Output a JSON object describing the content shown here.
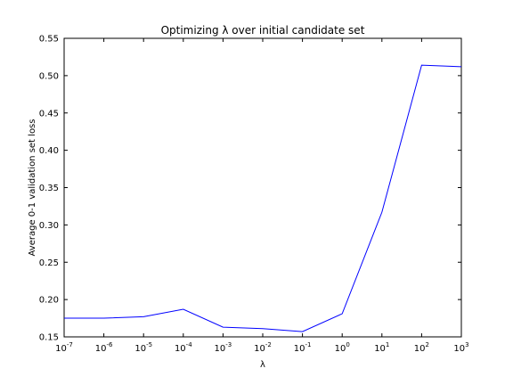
{
  "chart_data": {
    "type": "line",
    "title": "Optimizing λ over initial candidate set",
    "xlabel": "λ",
    "ylabel": "Average 0-1 validation set loss",
    "xscale": "log",
    "xlim": [
      1e-07,
      1000
    ],
    "ylim": [
      0.15,
      0.55
    ],
    "grid": false,
    "legend": "none",
    "x_ticks": [
      {
        "value": 1e-07,
        "base": "10",
        "exp": "-7"
      },
      {
        "value": 1e-06,
        "base": "10",
        "exp": "-6"
      },
      {
        "value": 1e-05,
        "base": "10",
        "exp": "-5"
      },
      {
        "value": 0.0001,
        "base": "10",
        "exp": "-4"
      },
      {
        "value": 0.001,
        "base": "10",
        "exp": "-3"
      },
      {
        "value": 0.01,
        "base": "10",
        "exp": "-2"
      },
      {
        "value": 0.1,
        "base": "10",
        "exp": "-1"
      },
      {
        "value": 1,
        "base": "10",
        "exp": "0"
      },
      {
        "value": 10,
        "base": "10",
        "exp": "1"
      },
      {
        "value": 100,
        "base": "10",
        "exp": "2"
      },
      {
        "value": 1000,
        "base": "10",
        "exp": "3"
      }
    ],
    "y_ticks": [
      {
        "value": 0.15,
        "label": "0.15"
      },
      {
        "value": 0.2,
        "label": "0.20"
      },
      {
        "value": 0.25,
        "label": "0.25"
      },
      {
        "value": 0.3,
        "label": "0.30"
      },
      {
        "value": 0.35,
        "label": "0.35"
      },
      {
        "value": 0.4,
        "label": "0.40"
      },
      {
        "value": 0.45,
        "label": "0.45"
      },
      {
        "value": 0.5,
        "label": "0.50"
      },
      {
        "value": 0.55,
        "label": "0.55"
      }
    ],
    "series": [
      {
        "color": "#0000ff",
        "x": [
          1e-07,
          1e-06,
          1e-05,
          0.0001,
          0.001,
          0.01,
          0.1,
          1,
          10,
          100,
          1000
        ],
        "y": [
          0.175,
          0.175,
          0.177,
          0.187,
          0.163,
          0.161,
          0.157,
          0.181,
          0.317,
          0.514,
          0.512
        ]
      }
    ]
  }
}
